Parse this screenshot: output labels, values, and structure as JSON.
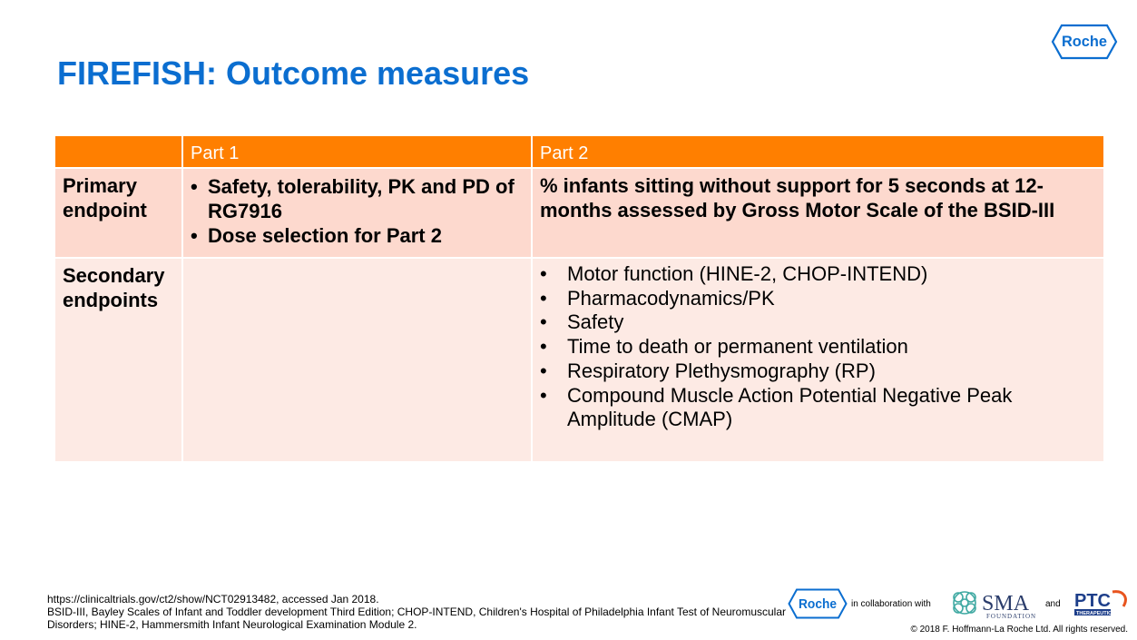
{
  "brand": {
    "name": "Roche",
    "primary_color": "#0B6ED0",
    "header_color": "#FF7F00",
    "row_primary_color": "#FDD9CE",
    "row_secondary_color": "#FDEAE4"
  },
  "slide": {
    "title": "FIREFISH: Outcome measures"
  },
  "table": {
    "headers": [
      "",
      "Part 1",
      "Part 2"
    ],
    "rows": [
      {
        "label": "Primary endpoint",
        "part1": [
          "Safety, tolerability, PK and PD of RG7916",
          "Dose selection for Part 2"
        ],
        "part2": "% infants sitting without support for 5 seconds at 12-months assessed by Gross Motor Scale of the BSID-III"
      },
      {
        "label": "Secondary endpoints",
        "part1": [],
        "part2": [
          "Motor function (HINE-2, CHOP-INTEND)",
          "Pharmacodynamics/PK",
          "Safety",
          "Time to death or permanent ventilation",
          "Respiratory Plethysmography (RP)",
          "Compound Muscle Action Potential Negative Peak Amplitude (CMAP)"
        ]
      }
    ]
  },
  "footnote": {
    "line1": "https://clinicaltrials.gov/ct2/show/NCT02913482, accessed Jan 2018.",
    "line2": "BSID-III, Bayley Scales of Infant and Toddler development Third Edition; CHOP-INTEND, Children's Hospital of Philadelphia Infant Test of Neuromuscular Disorders; HINE-2, Hammersmith Infant Neurological Examination Module 2."
  },
  "collaboration": {
    "roche": "Roche",
    "in_collab": "in collaboration with",
    "sma_name": "SMA",
    "sma_sub": "FOUNDATION",
    "and": "and",
    "ptc_name": "PTC",
    "ptc_sub": "THERAPEUTICS"
  },
  "copyright": "© 2018  F. Hoffmann-La Roche Ltd.  All rights reserved."
}
